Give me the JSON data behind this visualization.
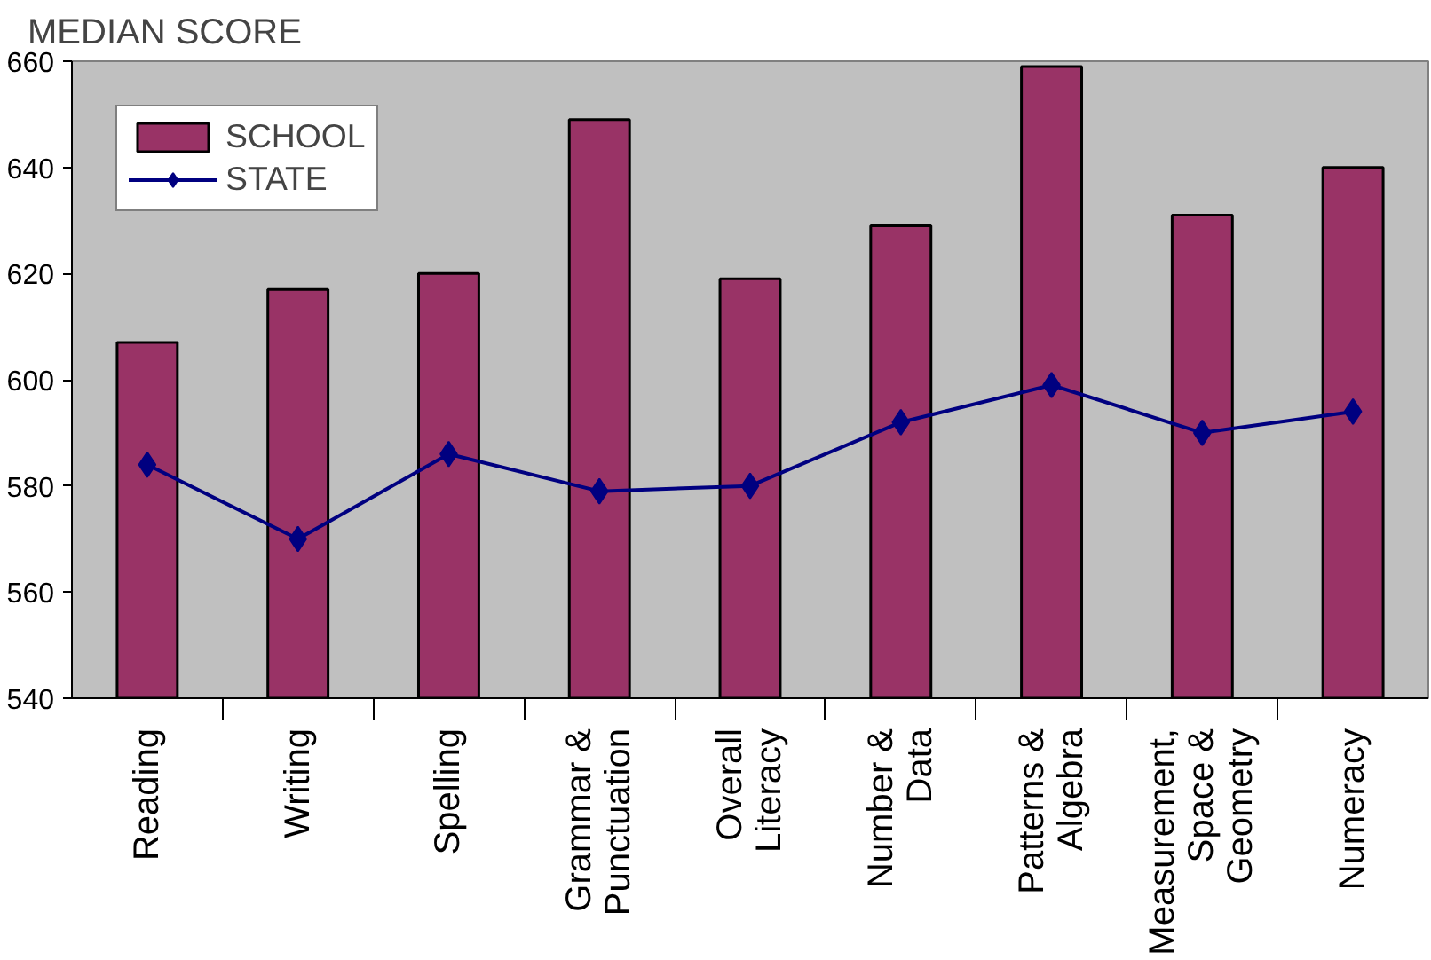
{
  "chart_data": {
    "type": "bar",
    "ylabel": "MEDIAN SCORE",
    "categories": [
      "Reading",
      "Writing",
      "Spelling",
      "Grammar &\nPunctuation",
      "Overall\nLiteracy",
      "Number &\nData",
      "Patterns &\nAlgebra",
      "Measurement,\nSpace &\nGeometry",
      "Numeracy"
    ],
    "series": [
      {
        "name": "SCHOOL",
        "color": "#993366",
        "values": [
          607,
          617,
          620,
          649,
          619,
          629,
          659,
          631,
          640
        ]
      },
      {
        "name": "STATE",
        "type": "line",
        "color": "#000080",
        "marker": "diamond",
        "values": [
          584,
          570,
          586,
          579,
          580,
          592,
          599,
          590,
          594
        ]
      }
    ],
    "ylim": [
      540,
      660
    ],
    "yticks": [
      540,
      560,
      580,
      600,
      620,
      640,
      660
    ],
    "grid": false,
    "legend": "top left"
  }
}
